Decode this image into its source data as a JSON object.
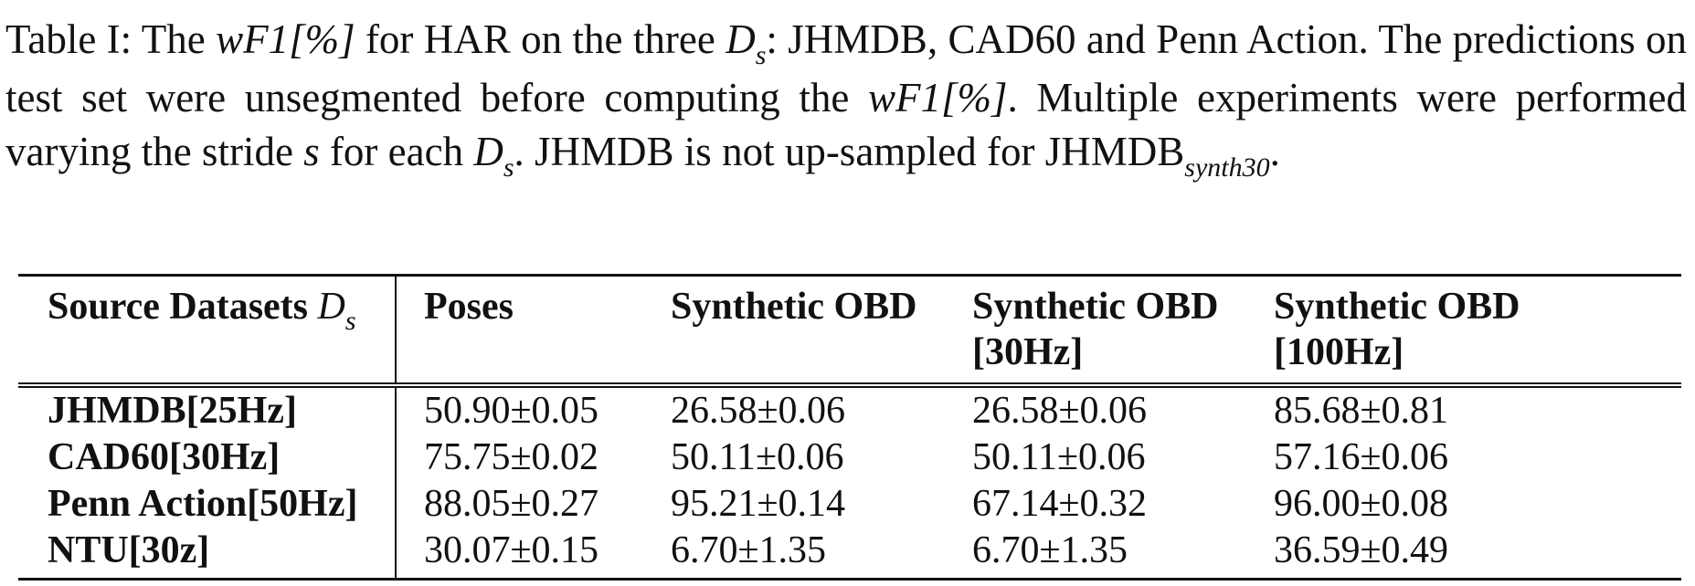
{
  "caption": {
    "p1": "Table I: The ",
    "m1": "wF1[%]",
    "p2": " for HAR on the three ",
    "m2": "D",
    "m2_sub": "s",
    "p3": ": JHMDB, CAD60 and Penn Action. The predictions on test set were unsegmented before computing the ",
    "m3": "wF1[%]",
    "p4": ". Multiple experiments were performed varying the stride ",
    "m4": "s",
    "p5": " for each ",
    "m5": "D",
    "m5_sub": "s",
    "p6": ". JHMDB is not up-sampled for JHMDB",
    "m6_sub": "synth30",
    "p7": "."
  },
  "table": {
    "header": {
      "source_label": "Source Datasets ",
      "source_math": "D",
      "source_sub": "s",
      "poses": "Poses",
      "obd": "Synthetic OBD",
      "obd30_line1": "Synthetic OBD",
      "obd30_line2": "[30Hz]",
      "obd100_line1": "Synthetic OBD",
      "obd100_line2": "[100Hz]"
    },
    "rows": [
      {
        "dataset": "JHMDB[25Hz]",
        "poses": "50.90±0.05",
        "obd": "26.58±0.06",
        "obd30": "26.58±0.06",
        "obd100": "85.68±0.81"
      },
      {
        "dataset": "CAD60[30Hz]",
        "poses": "75.75±0.02",
        "obd": "50.11±0.06",
        "obd30": "50.11±0.06",
        "obd100": "57.16±0.06"
      },
      {
        "dataset": "Penn Action[50Hz]",
        "poses": "88.05±0.27",
        "obd": "95.21±0.14",
        "obd30": "67.14±0.32",
        "obd100": "96.00±0.08"
      },
      {
        "dataset": "NTU[30z]",
        "poses": "30.07±0.15",
        "obd": "6.70±1.35",
        "obd30": "6.70±1.35",
        "obd100": "36.59±0.49"
      }
    ]
  }
}
